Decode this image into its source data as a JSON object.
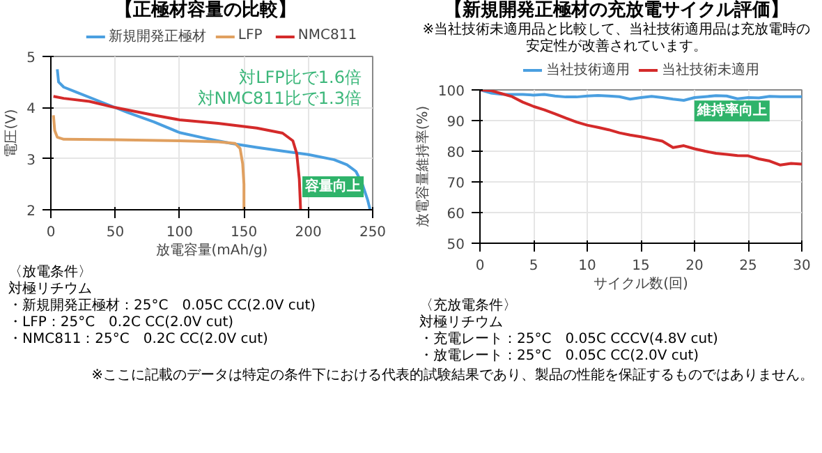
{
  "chart_data": [
    {
      "type": "line",
      "title": "【正極材容量の比較】",
      "xlabel": "放電容量(mAh/g)",
      "ylabel": "電圧(V)",
      "xlim": [
        0,
        250
      ],
      "ylim": [
        2,
        5
      ],
      "xticks": [
        0,
        50,
        100,
        150,
        200,
        250
      ],
      "yticks": [
        2,
        3,
        4,
        5
      ],
      "grid": true,
      "legend": "top",
      "series": [
        {
          "name": "新規開発正極材",
          "color": "#4a9fe0",
          "x": [
            5,
            6,
            10,
            20,
            40,
            60,
            80,
            100,
            120,
            140,
            160,
            180,
            200,
            220,
            230,
            237,
            242,
            246,
            248
          ],
          "values": [
            4.75,
            4.5,
            4.4,
            4.3,
            4.1,
            3.9,
            3.72,
            3.51,
            3.4,
            3.3,
            3.22,
            3.15,
            3.08,
            2.98,
            2.88,
            2.75,
            2.5,
            2.2,
            2.0
          ]
        },
        {
          "name": "LFP",
          "color": "#e0a060",
          "x": [
            2,
            3,
            5,
            10,
            50,
            100,
            130,
            143,
            147,
            149,
            150,
            150
          ],
          "values": [
            3.85,
            3.55,
            3.42,
            3.38,
            3.37,
            3.35,
            3.33,
            3.3,
            3.2,
            2.9,
            2.5,
            2.0
          ]
        },
        {
          "name": "NMC811",
          "color": "#d42a2a",
          "x": [
            2,
            10,
            30,
            50,
            80,
            100,
            130,
            160,
            180,
            188,
            191,
            193,
            194
          ],
          "values": [
            4.22,
            4.18,
            4.12,
            4.0,
            3.85,
            3.76,
            3.69,
            3.6,
            3.5,
            3.35,
            3.1,
            2.6,
            2.0
          ]
        }
      ],
      "annotations": [
        "対LFP比で1.6倍",
        "対NMC811比で1.3倍",
        {
          "text": "容量向上",
          "x": 243,
          "y": 2.45
        },
        "〈放電条件〉",
        "対極リチウム",
        "・新規開発正極材：25°C　0.05C CC(2.0V cut)",
        "・LFP：25°C　0.2C CC(2.0V cut)",
        "・NMC811：25°C　0.2C CC(2.0V cut)"
      ]
    },
    {
      "type": "line",
      "title": "【新規開発正極材の充放電サイクル評価】",
      "subtitle": "※当社技術未適用品と比較して、当社技術適用品は充放電時の安定性が改善されています。",
      "xlabel": "サイクル数(回)",
      "ylabel": "放電容量維持率(%)",
      "xlim": [
        0,
        30
      ],
      "ylim": [
        50,
        100
      ],
      "xticks": [
        0,
        5,
        10,
        15,
        20,
        25,
        30
      ],
      "yticks": [
        50,
        60,
        70,
        80,
        90,
        100
      ],
      "grid": true,
      "legend": "top",
      "x": [
        0,
        1,
        2,
        3,
        4,
        5,
        6,
        7,
        8,
        9,
        10,
        11,
        12,
        13,
        14,
        15,
        16,
        17,
        18,
        19,
        20,
        21,
        22,
        23,
        24,
        25,
        26,
        27,
        28,
        29,
        30
      ],
      "series": [
        {
          "name": "当社技術適用",
          "color": "#4a9fe0",
          "values": [
            100,
            99,
            98.6,
            98.5,
            98.5,
            98.3,
            98.5,
            98,
            97.7,
            97.7,
            98,
            98.2,
            98,
            97.8,
            97,
            97.5,
            97.9,
            97.5,
            97,
            96.6,
            97.5,
            97.8,
            98.1,
            98,
            97.1,
            97.5,
            97.4,
            97.9,
            97.8,
            97.8,
            97.8
          ]
        },
        {
          "name": "当社技術未適用",
          "color": "#d42a2a",
          "values": [
            100,
            99.8,
            98.8,
            97.8,
            96,
            94.6,
            93.5,
            92.2,
            90.8,
            89.5,
            88.5,
            87.8,
            87,
            86,
            85.3,
            84.7,
            84,
            83.3,
            81.2,
            81.8,
            80.8,
            80,
            79.3,
            79,
            78.6,
            78.5,
            77.5,
            76.8,
            75.5,
            76,
            75.8
          ]
        }
      ],
      "annotations": [
        {
          "text": "維持率向上",
          "x": 27,
          "y": 97.9
        },
        "〈充放電条件〉",
        "対極リチウム",
        "・充電レート：25°C　0.05C CCCV(4.8V cut)",
        "・放電レート：25°C　0.05C CC(2.0V cut)",
        "※ここに記載のデータは特定の条件下における代表的試験結果であり、製品の性能を保証するものではありません。"
      ]
    }
  ]
}
